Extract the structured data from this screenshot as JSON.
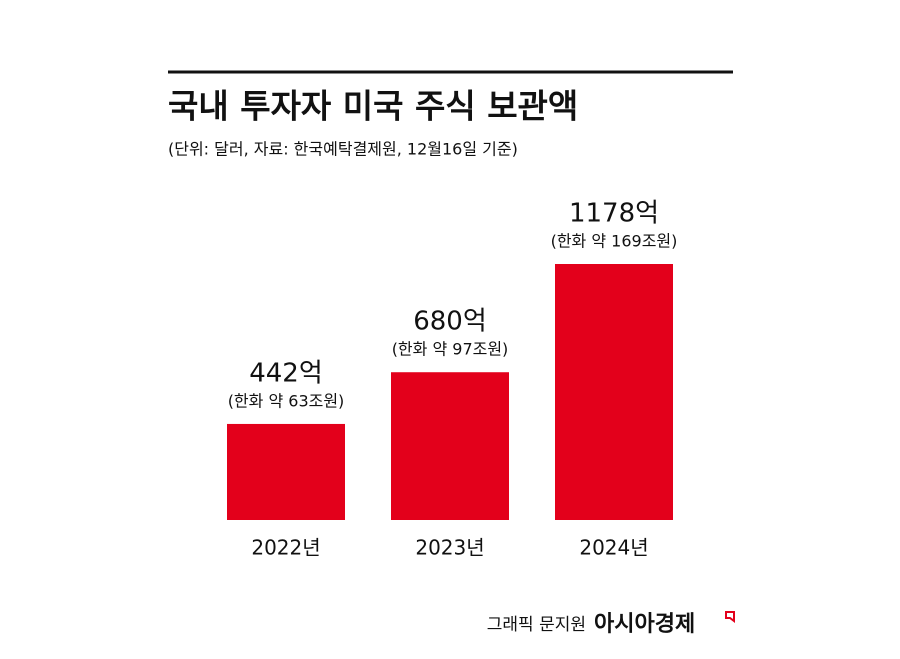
{
  "chart_data": {
    "type": "bar",
    "title": "국내 투자자 미국 주식 보관액",
    "subtitle": "(단위: 달러, 자료: 한국예탁결제원, 12월16일 기준)",
    "categories": [
      "2022년",
      "2023년",
      "2024년"
    ],
    "values": [
      442,
      680,
      1178
    ],
    "value_labels": [
      "442억",
      "680억",
      "1178억"
    ],
    "value_sublabels": [
      "(한화 약 63조원)",
      "(한화 약 97조원)",
      "(한화 약 169조원)"
    ],
    "color": "#e3001b",
    "credit": "그래픽 문지원",
    "source_logo": "아시아경제"
  }
}
